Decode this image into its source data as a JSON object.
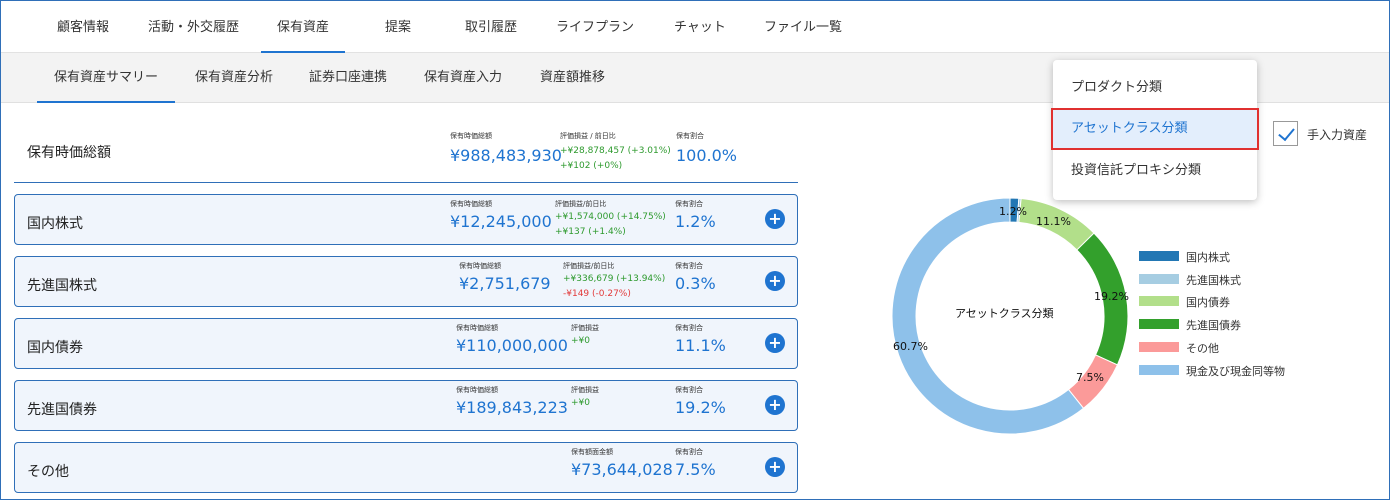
{
  "top_tabs": [
    "顧客情報",
    "活動・外交履歴",
    "保有資産",
    "提案",
    "取引履歴",
    "ライフプラン",
    "チャット",
    "ファイル一覧"
  ],
  "sub_tabs": [
    "保有資産サマリー",
    "保有資産分析",
    "証券口座連携",
    "保有資産入力",
    "資産額推移"
  ],
  "total": {
    "title": "保有時価総額",
    "value_label": "保有時価総額",
    "value": "¥988,483,930",
    "pl_label": "評価損益 / 前日比",
    "pl": "+¥28,878,457 (+3.01%)",
    "day": "+¥102 (+0%)",
    "ratio_label": "保有割合",
    "ratio": "100.0%"
  },
  "cards": [
    {
      "title": "国内株式",
      "value_label": "保有時価総額",
      "value": "¥12,245,000",
      "pl_label": "評価損益/前日比",
      "pl": "+¥1,574,000 (+14.75%)",
      "day": "+¥137 (+1.4%)",
      "ratio_label": "保有割合",
      "ratio": "1.2%"
    },
    {
      "title": "先進国株式",
      "value_label": "保有時価総額",
      "value": "¥2,751,679",
      "pl_label": "評価損益/前日比",
      "pl": "+¥336,679 (+13.94%)",
      "day": "-¥149 (-0.27%)",
      "ratio_label": "保有割合",
      "ratio": "0.3%"
    },
    {
      "title": "国内債券",
      "value_label": "保有時価総額",
      "value": "¥110,000,000",
      "pl_label": "評価損益",
      "pl": "+¥0",
      "ratio_label": "保有割合",
      "ratio": "11.1%"
    },
    {
      "title": "先進国債券",
      "value_label": "保有時価総額",
      "value": "¥189,843,223",
      "pl_label": "評価損益",
      "pl": "+¥0",
      "ratio_label": "保有割合",
      "ratio": "19.2%"
    },
    {
      "title": "その他",
      "value_label": "保有額面金額",
      "value": "¥73,644,028",
      "ratio_label": "保有割合",
      "ratio": "7.5%"
    }
  ],
  "add_icon": "plus-circle-icon",
  "dropdown": {
    "items": [
      "プロダクト分類",
      "アセットクラス分類",
      "投資信託プロキシ分類"
    ],
    "selected": "アセットクラス分類"
  },
  "manual_input": {
    "label": "手入力資産",
    "checked": true
  },
  "colors": {
    "accent": "#1f74d0",
    "gain": "#2e9a2e",
    "loss": "#e23b3b",
    "highlight_border": "#e03030"
  },
  "chart_data": {
    "type": "donut",
    "center_label": "アセットクラス分類",
    "categories": [
      "国内株式",
      "先進国株式",
      "国内債券",
      "先進国債券",
      "その他",
      "現金及び現金同等物"
    ],
    "values": [
      1.2,
      0.3,
      11.1,
      19.2,
      7.5,
      60.7
    ],
    "labels": [
      "1.2%",
      "",
      "11.1%",
      "19.2%",
      "7.5%",
      "60.7%"
    ],
    "colors": [
      "#2277b4",
      "#a6cde2",
      "#b2df8a",
      "#33a02c",
      "#fb9a99",
      "#8ec1ea"
    ],
    "legend": "right"
  }
}
